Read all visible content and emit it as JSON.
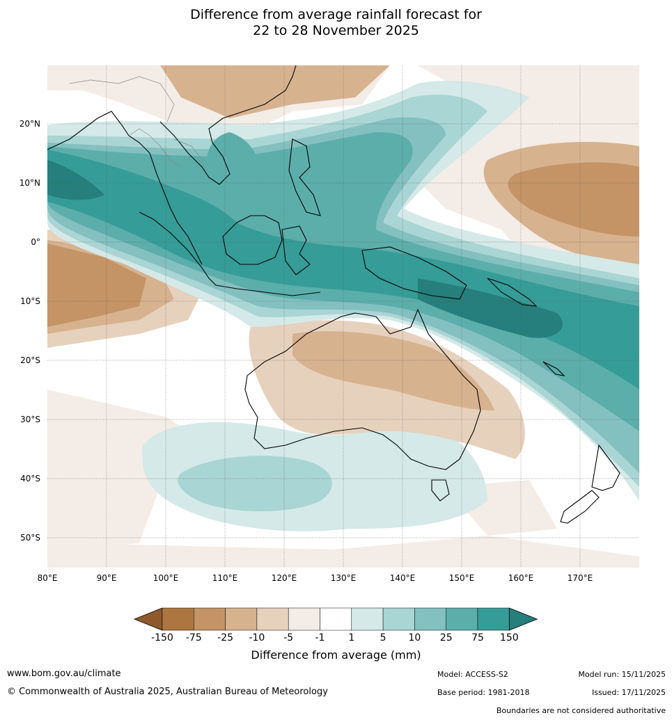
{
  "title": {
    "line1": "Difference from average rainfall forecast for",
    "line2": "22 to 28 November 2025"
  },
  "map": {
    "lat_labels": [
      "20°N",
      "10°N",
      "0°",
      "10°S",
      "20°S",
      "30°S",
      "40°S",
      "50°S"
    ],
    "lon_labels": [
      "80°E",
      "90°E",
      "100°E",
      "110°E",
      "120°E",
      "130°E",
      "140°E",
      "150°E",
      "160°E",
      "170°E"
    ]
  },
  "legend": {
    "title": "Difference from average (mm)",
    "ticks": [
      "-150",
      "-75",
      "-25",
      "-10",
      "-5",
      "-1",
      "1",
      "5",
      "10",
      "25",
      "75",
      "150"
    ],
    "colors": [
      "#8e5a2b",
      "#ac7640",
      "#c49467",
      "#d7b28f",
      "#e6d1bd",
      "#f4ece6",
      "#ffffff",
      "#d4e9e8",
      "#a9d5d4",
      "#83c0bf",
      "#5caeab",
      "#369c98",
      "#267f7c"
    ]
  },
  "footer": {
    "website": "www.bom.gov.au/climate",
    "copyright": "© Commonwealth of Australia 2025, Australian Bureau of Meteorology",
    "model": "Model: ACCESS-S2",
    "base_period": "Base period: 1981-2018",
    "model_run": "Model run: 15/11/2025",
    "issued": "Issued: 17/11/2025",
    "disclaimer": "Boundaries are not considered authoritative"
  }
}
